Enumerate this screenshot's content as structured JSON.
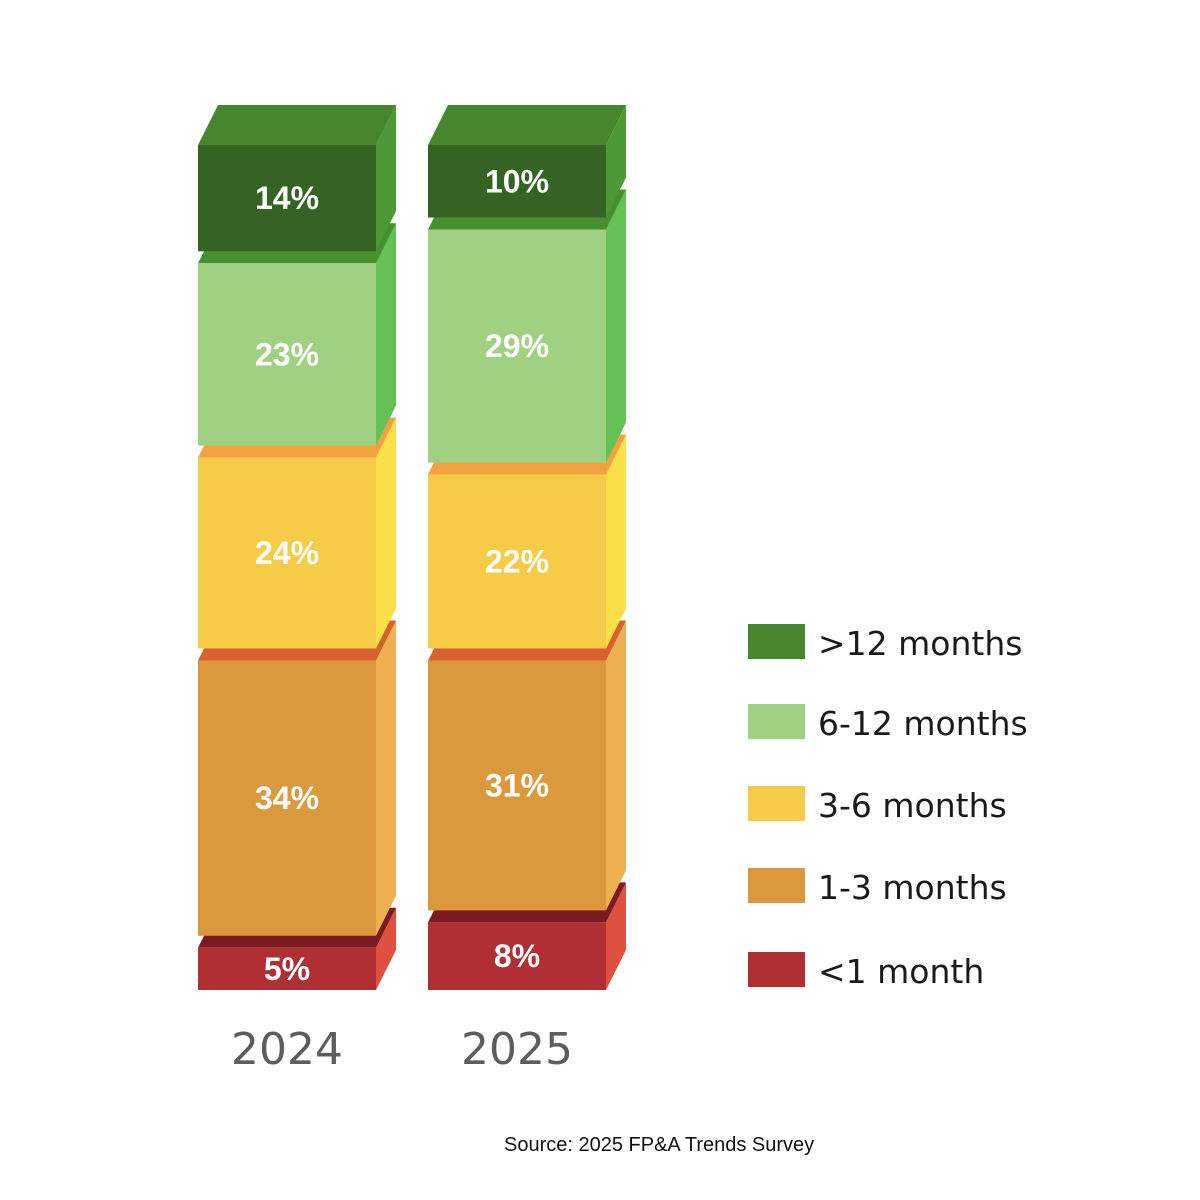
{
  "chart_data": {
    "type": "bar",
    "stacked": true,
    "style": "3d",
    "categories": [
      "2024",
      "2025"
    ],
    "series": [
      {
        "name": "<1 month",
        "values": [
          5,
          8
        ],
        "labels": [
          "5%",
          "8%"
        ],
        "color": "#b02f33",
        "top_color": "#7c1a22",
        "side_color": "#e0503e"
      },
      {
        "name": "1-3 months",
        "values": [
          34,
          31
        ],
        "labels": [
          "34%",
          "31%"
        ],
        "color": "#dc983d",
        "top_color": "#d9602f",
        "side_color": "#efb052"
      },
      {
        "name": "3-6 months",
        "values": [
          24,
          22
        ],
        "labels": [
          "24%",
          "22%"
        ],
        "color": "#f6cb47",
        "top_color": "#f2a33f",
        "side_color": "#fbdf48"
      },
      {
        "name": "6-12 months",
        "values": [
          23,
          29
        ],
        "labels": [
          "23%",
          "29%"
        ],
        "color": "#a0d182",
        "top_color": "#47902f",
        "side_color": "#65c156"
      },
      {
        "name": ">12 months",
        "values": [
          14,
          10
        ],
        "labels": [
          "14%",
          "10%"
        ],
        "color": "#356323",
        "top_color": "#46872e",
        "side_color": "#4c9936"
      }
    ],
    "legend": {
      "position": "right",
      "order": [
        ">12 months",
        "6-12 months",
        "3-6 months",
        "1-3 months",
        "<1 month"
      ]
    },
    "source": "Source: 2025 FP&A Trends Survey"
  }
}
